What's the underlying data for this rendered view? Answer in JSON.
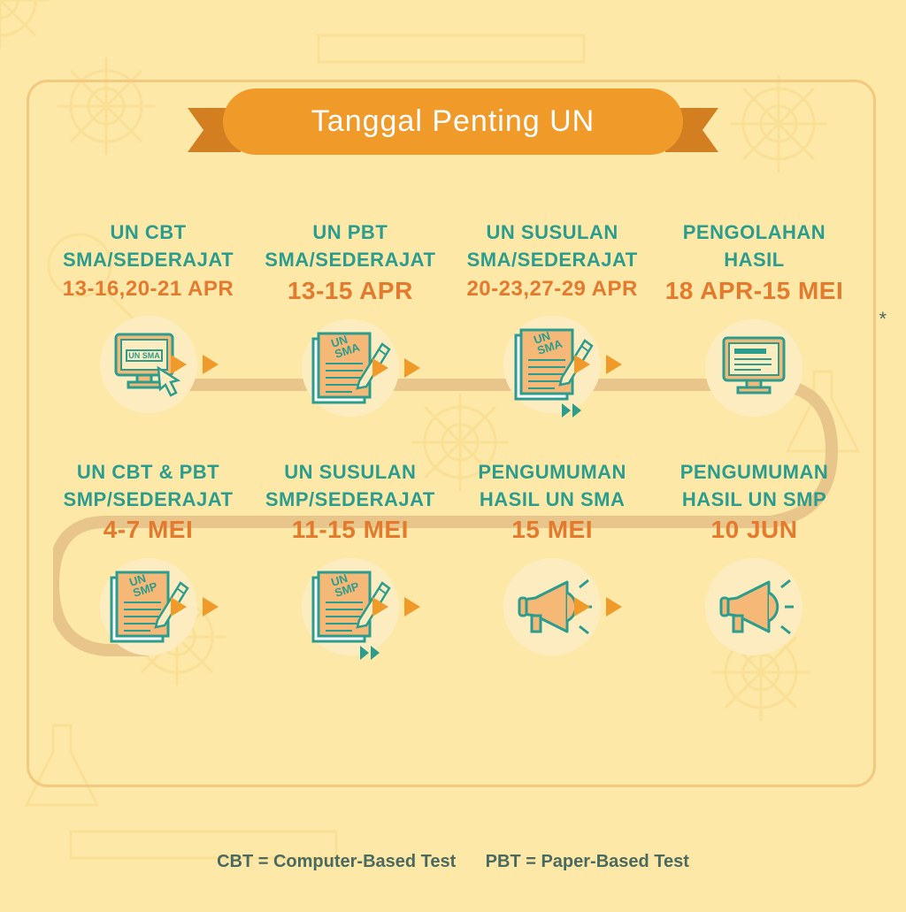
{
  "colors": {
    "bg": "#fde8a8",
    "bgPattern": "#f8dc8f",
    "frameBorder": "#f2c97e",
    "bannerMain": "#f09a2a",
    "bannerRibbon": "#d37f21",
    "labelText": "#2a9d8f",
    "dateText": "#e47a2e",
    "circleBg": "#fdecc0",
    "iconStroke": "#2a9d8f",
    "iconFill": "#f6b876",
    "arrow": "#f09a2a",
    "connector": "#e8c58a",
    "legendText": "#4a6a5f"
  },
  "banner": {
    "title": "Tanggal Penting UN"
  },
  "legend": {
    "cbt": "CBT = Computer-Based Test",
    "pbt": "PBT = Paper-Based Test"
  },
  "asterisk": "*",
  "row1": [
    {
      "label1": "UN CBT",
      "label2": "SMA/SEDERAJAT",
      "date": "13-16,20-21 APR",
      "icon": "monitor-click",
      "iconText": "UN SMA",
      "arrow": true
    },
    {
      "label1": "UN PBT",
      "label2": "SMA/SEDERAJAT",
      "date": "13-15 APR",
      "icon": "doc-pen",
      "iconText": "UN\nSMA",
      "arrow": true
    },
    {
      "label1": "UN SUSULAN",
      "label2": "SMA/SEDERAJAT",
      "date": "20-23,27-29 APR",
      "icon": "doc-pen-ff",
      "iconText": "UN\nSMA",
      "arrow": true
    },
    {
      "label1": "PENGOLAHAN",
      "label2": "HASIL",
      "date": "18 APR-15 MEI",
      "icon": "monitor-lines",
      "arrow": false
    }
  ],
  "row2": [
    {
      "label1": "UN CBT & PBT",
      "label2": "SMP/SEDERAJAT",
      "date": "4-7 MEI",
      "icon": "doc-pen",
      "iconText": "UN\nSMP",
      "arrow": true
    },
    {
      "label1": "UN SUSULAN",
      "label2": "SMP/SEDERAJAT",
      "date": "11-15 MEI",
      "icon": "doc-pen-ff",
      "iconText": "UN\nSMP",
      "arrow": true
    },
    {
      "label1": "PENGUMUMAN",
      "label2": "HASIL UN SMA",
      "date": "15 MEI",
      "icon": "megaphone",
      "arrow": true
    },
    {
      "label1": "PENGUMUMAN",
      "label2": "HASIL UN SMP",
      "date": "10 JUN",
      "icon": "megaphone",
      "arrow": false
    }
  ]
}
